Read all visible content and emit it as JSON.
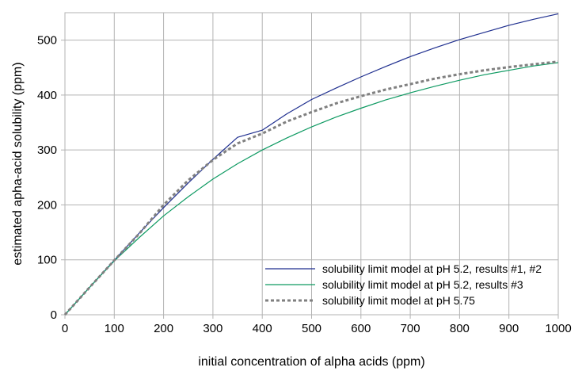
{
  "chart_data": {
    "type": "line",
    "xlabel": "initial concentration of alpha acids (ppm)",
    "ylabel": "estimated apha-acid solubility (ppm)",
    "xlim": [
      0,
      1000
    ],
    "ylim": [
      0,
      550
    ],
    "x_ticks": [
      0,
      100,
      200,
      300,
      400,
      500,
      600,
      700,
      800,
      900,
      1000
    ],
    "y_ticks": [
      0,
      100,
      200,
      300,
      400,
      500
    ],
    "grid": true,
    "legend_position": "bottom-right",
    "x": [
      0,
      50,
      100,
      150,
      200,
      250,
      300,
      350,
      400,
      450,
      500,
      550,
      600,
      650,
      700,
      750,
      800,
      850,
      900,
      950,
      1000
    ],
    "series": [
      {
        "name": "solubility limit model at pH 5.2, results #1, #2",
        "color": "#1f2f8f",
        "dash": "solid",
        "values": [
          0,
          50,
          99,
          148,
          195,
          240,
          283,
          323,
          336,
          366,
          392,
          413,
          433,
          452,
          470,
          486,
          501,
          514,
          527,
          538,
          548
        ]
      },
      {
        "name": "solubility limit model at pH 5.2, results #3",
        "color": "#0e9a62",
        "dash": "solid",
        "values": [
          0,
          50,
          98,
          140,
          180,
          215,
          247,
          275,
          300,
          322,
          342,
          360,
          376,
          391,
          404,
          416,
          427,
          437,
          445,
          453,
          459
        ]
      },
      {
        "name": "solubility limit model at pH 5.75",
        "color": "#808080",
        "dash": "dotted",
        "values": [
          0,
          50,
          99,
          147,
          200,
          245,
          282,
          312,
          330,
          352,
          369,
          385,
          398,
          410,
          420,
          430,
          438,
          445,
          451,
          456,
          461
        ]
      }
    ]
  }
}
